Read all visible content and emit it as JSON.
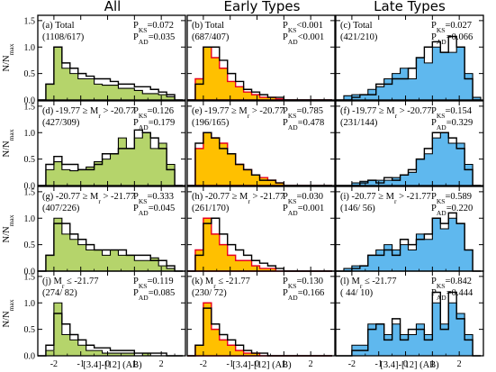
{
  "column_titles": [
    "All",
    "Early Types",
    "Late Types"
  ],
  "ylabel_main": "N/N",
  "ylabel_sub": "max",
  "xlabel": "[3.4]-[12] (AB)",
  "colors": {
    "all_fill": "#b5d46b",
    "early_fill": "#ffc000",
    "late_fill": "#5fb8ee",
    "red_text": "#e8001c",
    "blue_text": "#1a1aff",
    "red_line": "#e8001c"
  },
  "xticks": [
    "-2",
    "-1",
    "0",
    "1",
    "2"
  ],
  "yticks": [
    "0.0",
    "0.5",
    "1.0",
    "1.5"
  ],
  "chart_data": {
    "type": "histogram",
    "x_range": [
      -2.6,
      2.9
    ],
    "y_range": [
      0,
      1.6
    ],
    "bin_edges": [
      -2.6,
      -2.3,
      -2.0,
      -1.7,
      -1.4,
      -1.1,
      -0.8,
      -0.5,
      -0.2,
      0.1,
      0.4,
      0.7,
      1.0,
      1.3,
      1.6,
      1.9,
      2.2,
      2.5,
      2.8
    ],
    "panels": [
      {
        "label": "(a) Total",
        "counts": "(1108/617)",
        "pks": "P",
        "pks_sub": "KS",
        "pks_val": "=0.072",
        "pad_sub": "AD",
        "pad_val": "=0.035",
        "filled": [
          0,
          0.3,
          1.0,
          0.6,
          0.5,
          0.4,
          0.4,
          0.3,
          0.28,
          0.28,
          0.22,
          0.22,
          0.18,
          0.12,
          0.12,
          0.1,
          0.06,
          0
        ],
        "outline": [
          0,
          0.3,
          1.0,
          0.7,
          0.6,
          0.5,
          0.45,
          0.4,
          0.4,
          0.35,
          0.3,
          0.3,
          0.25,
          0.25,
          0.2,
          0.15,
          0.1,
          0
        ]
      },
      {
        "label": "(b) Total",
        "counts": "(687/407)",
        "pks_sub": "KS",
        "pks_val": "<0.001",
        "pad_sub": "AD",
        "pad_val": "<0.001",
        "filled": [
          0,
          0.4,
          1.0,
          0.8,
          0.6,
          0.35,
          0.25,
          0.15,
          0.1,
          0.05,
          0.05,
          0.02,
          0,
          0,
          0,
          0,
          0,
          0
        ],
        "outline": [
          0,
          0.3,
          1.0,
          1.0,
          0.75,
          0.5,
          0.35,
          0.2,
          0.15,
          0.1,
          0.05,
          0.05,
          0,
          0,
          0,
          0,
          0,
          0
        ]
      },
      {
        "label": "(c) Total",
        "counts": "(421/210)",
        "pks_sub": "KS",
        "pks_val": "=0.027",
        "pad_sub": "AD",
        "pad_val": "=0.066",
        "filled": [
          0,
          0.08,
          0.1,
          0.1,
          0.2,
          0.25,
          0.4,
          0.5,
          0.6,
          0.4,
          0.8,
          0.7,
          1.0,
          0.9,
          0.9,
          1.0,
          0.5,
          0.05
        ],
        "outline": [
          0,
          0,
          0.05,
          0.1,
          0.1,
          0.3,
          0.3,
          0.4,
          0.4,
          0.6,
          0.8,
          1.0,
          1.1,
          0.9,
          1.2,
          1.0,
          0.4,
          0
        ]
      },
      {
        "label": "(d) -19.77 ≥ M",
        "label_sub": "r",
        "label_tail": " > -20.77",
        "counts": "(427/309)",
        "pks_sub": "KS",
        "pks_val": "=0.126",
        "pad_sub": "AD",
        "pad_val": "=0.179",
        "filled": [
          0,
          0.3,
          0.45,
          0.3,
          0.28,
          0.3,
          0.35,
          0.45,
          0.5,
          0.6,
          0.9,
          0.7,
          0.9,
          1.0,
          0.7,
          0.8,
          0.4,
          0
        ],
        "outline": [
          0,
          0.4,
          0.55,
          0.4,
          0.4,
          0.3,
          0.3,
          0.4,
          0.6,
          0.6,
          0.7,
          0.7,
          1.05,
          1.0,
          0.9,
          0.7,
          0.3,
          0
        ]
      },
      {
        "label": "(e) -19.77 ≥ M",
        "label_sub": "r",
        "label_tail": " > -20.77",
        "counts": "(196/165)",
        "pks_sub": "KS",
        "pks_val": "=0.785",
        "pad_sub": "AD",
        "pad_val": "=0.478",
        "filled": [
          0,
          0.7,
          1.0,
          0.9,
          0.8,
          0.6,
          0.4,
          0.3,
          0.2,
          0.15,
          0.1,
          0.05,
          0,
          0,
          0,
          0,
          0,
          0
        ],
        "outline": [
          0,
          0.8,
          1.0,
          0.9,
          0.7,
          0.6,
          0.4,
          0.3,
          0.2,
          0.1,
          0.1,
          0.05,
          0,
          0,
          0,
          0,
          0,
          0
        ]
      },
      {
        "label": "(f) -19.77 ≥ M",
        "label_sub": "r",
        "label_tail": " > -20.77",
        "counts": "(231/144)",
        "pks_sub": "KS",
        "pks_val": "=0.154",
        "pad_sub": "AD",
        "pad_val": "=0.329",
        "filled": [
          0,
          0,
          0.05,
          0.08,
          0.1,
          0.1,
          0.1,
          0.15,
          0.2,
          0.25,
          0.5,
          0.6,
          0.9,
          1.0,
          0.8,
          0.8,
          0.4,
          0
        ],
        "outline": [
          0,
          0,
          0,
          0.05,
          0.1,
          0.05,
          0.15,
          0.1,
          0.2,
          0.3,
          0.5,
          0.7,
          1.0,
          1.0,
          0.9,
          0.7,
          0.3,
          0
        ]
      },
      {
        "label": "(g) -20.77 ≥ M",
        "label_sub": "r",
        "label_tail": " > -21.77",
        "counts": "(407/226)",
        "pks_sub": "KS",
        "pks_val": "=0.333",
        "pad_sub": "AD",
        "pad_val": "=0.045",
        "filled": [
          0,
          0.3,
          1.0,
          0.7,
          0.6,
          0.5,
          0.4,
          0.4,
          0.3,
          0.4,
          0.3,
          0.3,
          0.2,
          0.2,
          0.25,
          0.1,
          0.05,
          0
        ],
        "outline": [
          0,
          0.3,
          0.9,
          0.9,
          0.7,
          0.6,
          0.5,
          0.4,
          0.4,
          0.4,
          0.4,
          0.3,
          0.3,
          0.3,
          0.2,
          0.2,
          0.1,
          0
        ]
      },
      {
        "label": "(h) -20.77 ≥ M",
        "label_sub": "r",
        "label_tail": " > -21.77",
        "counts": "(261/170)",
        "pks_sub": "KS",
        "pks_val": "=0.030",
        "pad_sub": "AD",
        "pad_val": "=0.001",
        "filled": [
          0,
          0.4,
          1.0,
          0.7,
          0.5,
          0.3,
          0.2,
          0.2,
          0.1,
          0.05,
          0.05,
          0,
          0,
          0,
          0,
          0,
          0,
          0
        ],
        "outline": [
          0,
          0.3,
          0.9,
          1.0,
          0.7,
          0.5,
          0.4,
          0.3,
          0.2,
          0.15,
          0.1,
          0.05,
          0,
          0,
          0,
          0,
          0,
          0
        ]
      },
      {
        "label": "(i) -20.77 ≥ M",
        "label_sub": "r",
        "label_tail": " > -21.77",
        "counts": "(146/ 56)",
        "pks_sub": "KS",
        "pks_val": "=0.589",
        "pad_sub": "AD",
        "pad_val": "=0.220",
        "filled": [
          0,
          0.05,
          0.1,
          0.1,
          0.3,
          0.4,
          0.5,
          0.4,
          0.5,
          0.4,
          0.7,
          0.6,
          1.0,
          0.8,
          1.0,
          0.9,
          0.4,
          0
        ],
        "outline": [
          0,
          0,
          0.05,
          0.1,
          0.3,
          0.3,
          0.4,
          0.3,
          0.6,
          0.5,
          0.6,
          0.7,
          1.0,
          0.9,
          1.1,
          0.9,
          0.4,
          0
        ]
      },
      {
        "label": "(j) M",
        "label_sub": "r",
        "label_tail": " ≤ -21.77",
        "counts": "(274/ 82)",
        "pks_sub": "KS",
        "pks_val": "=0.119",
        "pad_sub": "AD",
        "pad_val": "=0.085",
        "filled": [
          0,
          0.1,
          1.0,
          0.4,
          0.3,
          0.2,
          0.1,
          0.1,
          0.05,
          0.05,
          0.05,
          0.05,
          0,
          0.05,
          0,
          0,
          0,
          0
        ],
        "outline": [
          0,
          0.2,
          0.8,
          0.6,
          0.4,
          0.3,
          0.2,
          0.15,
          0.15,
          0.1,
          0.1,
          0.1,
          0.05,
          0.05,
          0.05,
          0.05,
          0,
          0
        ]
      },
      {
        "label": "(k) M",
        "label_sub": "r",
        "label_tail": " ≤ -21.77",
        "counts": "(230/ 72)",
        "pks_sub": "KS",
        "pks_val": "=0.130",
        "pad_sub": "AD",
        "pad_val": "=0.166",
        "filled": [
          0,
          0.2,
          1.0,
          0.5,
          0.3,
          0.2,
          0.1,
          0.05,
          0.05,
          0,
          0,
          0,
          0,
          0,
          0,
          0,
          0,
          0
        ],
        "outline": [
          0,
          0.2,
          0.9,
          0.6,
          0.4,
          0.3,
          0.2,
          0.1,
          0.05,
          0.05,
          0,
          0,
          0,
          0,
          0,
          0,
          0,
          0
        ]
      },
      {
        "label": "(l) M",
        "label_sub": "r",
        "label_tail": " ≤ -21.77",
        "counts": "( 44/ 10)",
        "pks_sub": "KS",
        "pks_val": "=0.842",
        "pad_sub": "AD",
        "pad_val": "=0.444",
        "filled": [
          0,
          0,
          0.2,
          0.2,
          0.6,
          0.6,
          0.4,
          0.6,
          0.4,
          0.4,
          0.6,
          0.4,
          1.0,
          0.6,
          1.0,
          0.8,
          0.4,
          0
        ],
        "outline": [
          0,
          0,
          0.1,
          0.1,
          0.5,
          0.6,
          0.3,
          0.7,
          0.3,
          0.5,
          0.5,
          0.3,
          1.2,
          0.5,
          1.2,
          0.7,
          0.3,
          0
        ]
      }
    ]
  }
}
